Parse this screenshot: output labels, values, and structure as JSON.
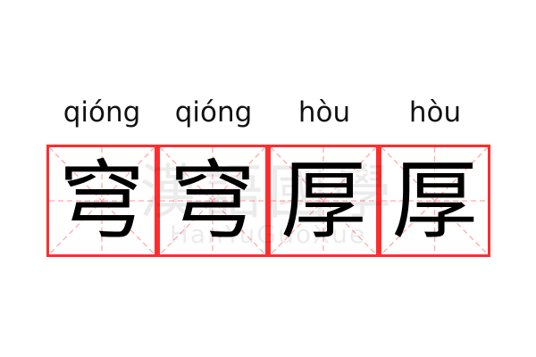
{
  "pinyin": [
    "qióng",
    "qióng",
    "hòu",
    "hòu"
  ],
  "characters": [
    "穹",
    "穹",
    "厚",
    "厚"
  ],
  "watermark": {
    "chinese": "漢語國學",
    "latin": "HanYuGuoXue"
  },
  "colors": {
    "grid_border": "#ff2d2d",
    "guide_lines": "#ffaaaa",
    "text": "#000000"
  }
}
